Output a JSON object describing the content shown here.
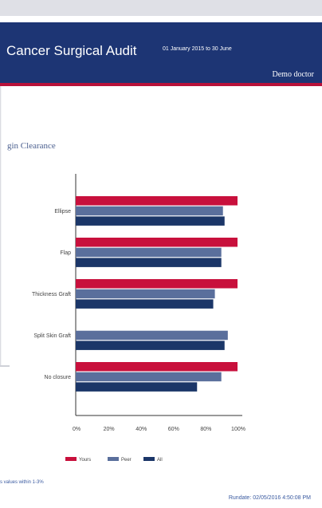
{
  "header": {
    "title": "Cancer Surgical Audit",
    "period": "01 January 2015 to 30 June",
    "doctor": "Demo doctor"
  },
  "section_title": "gin Clearance",
  "footnote": "s values within 1-3%",
  "rundate": "Rundate: 02/05/2016 4:50:08 PM",
  "colors": {
    "header_bg": "#1d3574",
    "accent": "#b8123a",
    "yours": "#c8103c",
    "peer": "#5a6f9c",
    "all": "#1b3668"
  },
  "chart_data": {
    "type": "bar",
    "orientation": "horizontal",
    "title": "gin Clearance",
    "categories": [
      "Ellipse",
      "Flap",
      "Thickness Graft",
      "Split Skin Graft",
      "No closure"
    ],
    "series": [
      {
        "name": "Yours",
        "values": [
          100,
          100,
          100,
          0,
          100
        ]
      },
      {
        "name": "Peer",
        "values": [
          91,
          90,
          86,
          94,
          90
        ]
      },
      {
        "name": "All",
        "values": [
          92,
          90,
          85,
          92,
          75
        ]
      }
    ],
    "x_ticks": [
      "0%",
      "20%",
      "40%",
      "60%",
      "80%",
      "100%"
    ],
    "xlim": [
      0,
      100
    ],
    "grid": false,
    "legend_position": "bottom"
  }
}
